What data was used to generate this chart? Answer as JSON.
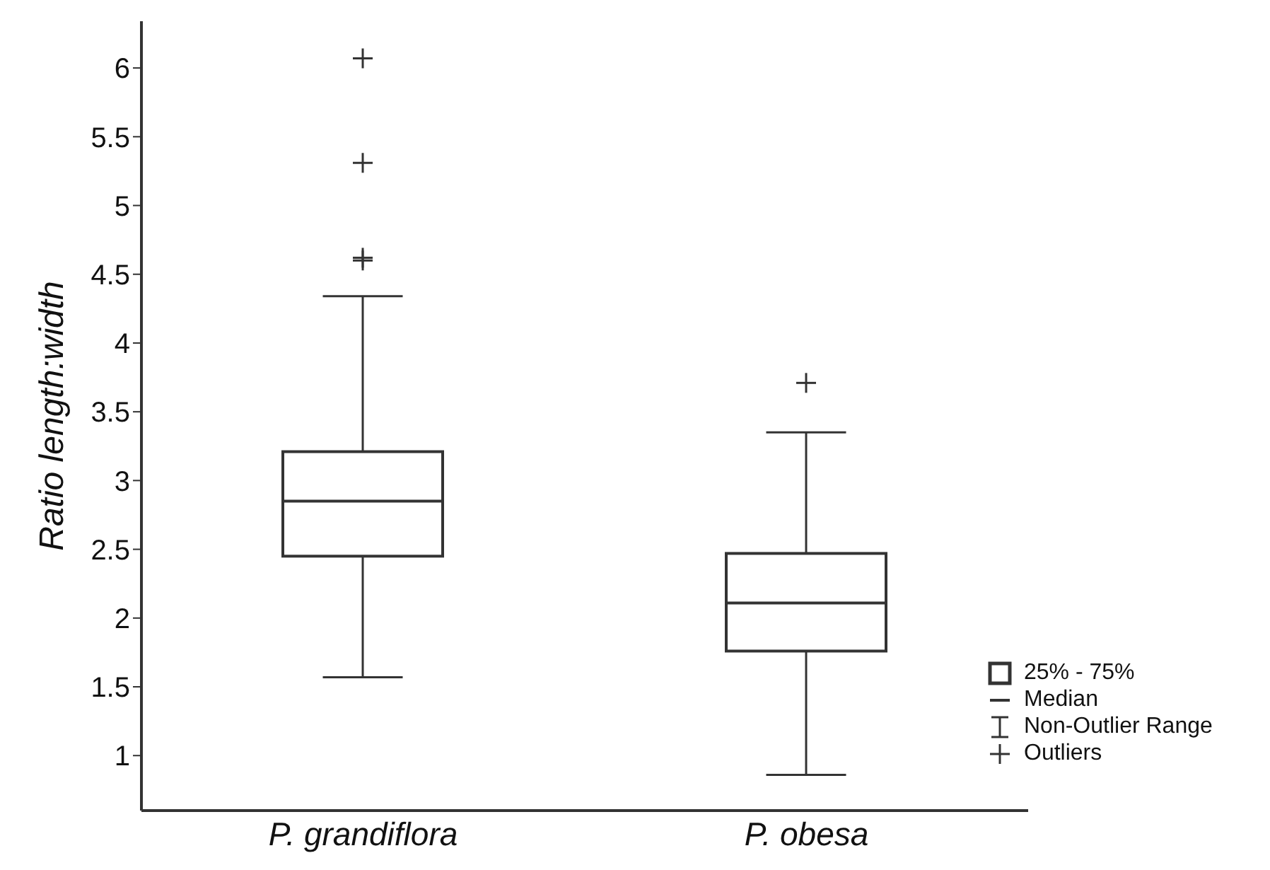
{
  "chart_data": {
    "type": "box",
    "ylabel": "Ratio length:width",
    "categories": [
      "P. grandiflora",
      "P. obesa"
    ],
    "series": [
      {
        "color": "#333333",
        "boxes": [
          {
            "low": 1.57,
            "q1": 2.45,
            "median": 2.85,
            "q3": 3.21,
            "high": 4.34,
            "outliers": [
              4.6,
              4.62,
              5.31,
              6.07
            ]
          },
          {
            "low": 0.86,
            "q1": 1.76,
            "median": 2.11,
            "q3": 2.47,
            "high": 3.35,
            "outliers": [
              3.71
            ]
          }
        ]
      }
    ],
    "ylim": [
      0.6,
      6.34
    ],
    "yticks": [
      1,
      1.5,
      2,
      2.5,
      3,
      3.5,
      4,
      4.5,
      5,
      5.5,
      6
    ],
    "marker": "cross",
    "annotations": [
      "25% - 75%",
      "Median",
      "Non-Outlier Range",
      "Outliers"
    ]
  }
}
